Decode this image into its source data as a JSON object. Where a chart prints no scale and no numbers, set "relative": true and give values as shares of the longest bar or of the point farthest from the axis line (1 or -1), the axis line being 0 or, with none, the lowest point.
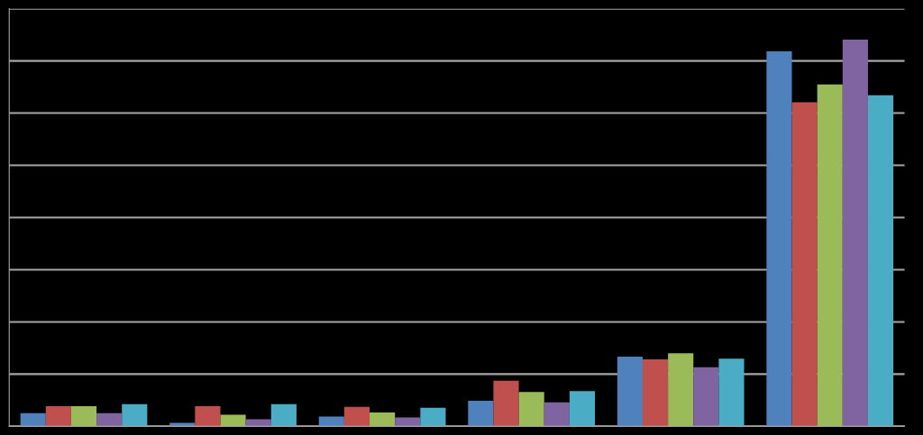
{
  "chart_data": {
    "type": "bar",
    "relative": true,
    "grid": "y",
    "categories": [
      null,
      null,
      null,
      null,
      null,
      null
    ],
    "series": [
      {
        "color": "#4f81bd",
        "values": [
          0.034,
          0.009,
          0.025,
          0.066,
          0.18,
          0.97
        ]
      },
      {
        "color": "#c0504d",
        "values": [
          0.052,
          0.052,
          0.05,
          0.118,
          0.173,
          0.838
        ]
      },
      {
        "color": "#9bbb59",
        "values": [
          0.052,
          0.03,
          0.036,
          0.089,
          0.189,
          0.884
        ]
      },
      {
        "color": "#8064a2",
        "values": [
          0.034,
          0.018,
          0.023,
          0.062,
          0.153,
          1
        ]
      },
      {
        "color": "#4bacc6",
        "values": [
          0.057,
          0.057,
          0.048,
          0.091,
          0.175,
          0.856
        ]
      }
    ]
  }
}
